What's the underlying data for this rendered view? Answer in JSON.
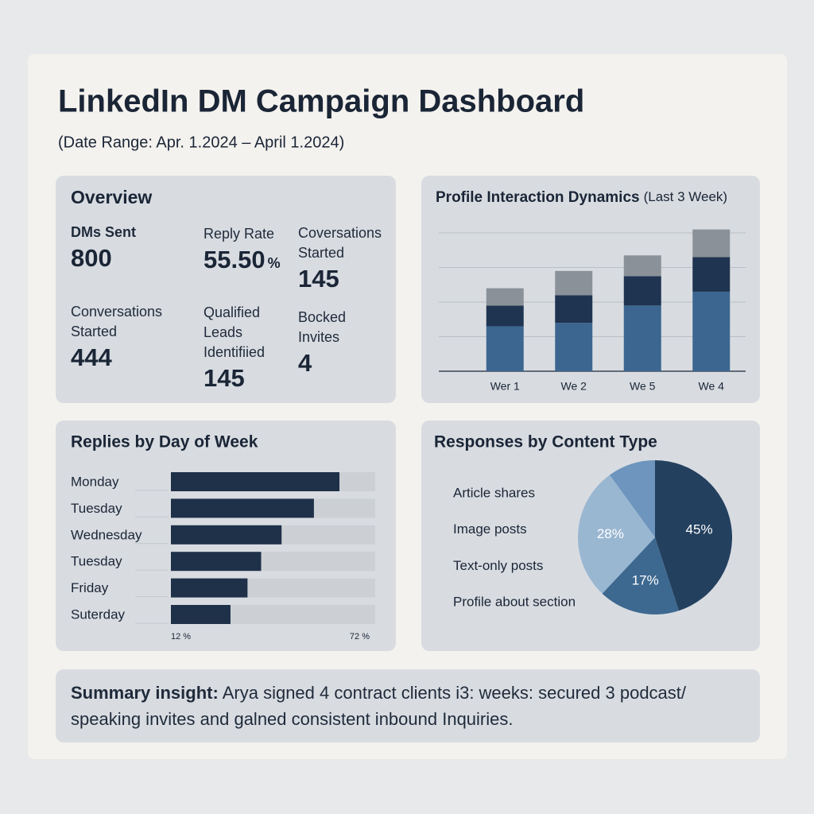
{
  "header": {
    "title": "LinkedIn DM Campaign Dashboard",
    "subtitle": "(Date Range: Apr. 1.2024 – April 1.2024)"
  },
  "overview": {
    "title": "Overview",
    "metrics": [
      {
        "label": "DMs Sent",
        "value": "800"
      },
      {
        "label": "Reply Rate",
        "value": "55.50",
        "unit": "%"
      },
      {
        "label": "Coversations Started",
        "value": "145"
      },
      {
        "label": "Conversations Started",
        "value": "444"
      },
      {
        "label": "Qualified Leads Identifiied",
        "value": "145"
      },
      {
        "label": "Bocked Invites",
        "value": "4"
      }
    ]
  },
  "chart_data": [
    {
      "type": "stacked-bar",
      "title": "Profile Interaction Dynamics",
      "subtitle": "(Last 3 Week)",
      "categories": [
        "Wer 1",
        "We 2",
        "We 5",
        "We 4"
      ],
      "series": [
        {
          "color": "#3c6690",
          "values": [
            13,
            14,
            19,
            23
          ]
        },
        {
          "color": "#1f3450",
          "values": [
            6,
            8,
            8.5,
            10
          ]
        },
        {
          "color": "#8a9199",
          "values": [
            5,
            7,
            6,
            8
          ]
        }
      ],
      "ylim": [
        0,
        42
      ],
      "yticks": [
        10,
        20,
        30,
        40
      ],
      "grid": true
    },
    {
      "type": "hbar",
      "title": "Replies by Day of Week",
      "categories": [
        "Monday",
        "Tuesday",
        "Wednesday",
        "Tuesday",
        "Friday",
        "Suterday"
      ],
      "values": [
        61.5,
        54,
        44.5,
        38.5,
        34.5,
        29.5
      ],
      "color": "#1f3049",
      "track_color": "#ccd0d5",
      "xlim": [
        12,
        72
      ],
      "xticks": [
        {
          "value": 12,
          "label": "12 %"
        },
        {
          "value": 72,
          "label": "72 %"
        }
      ]
    },
    {
      "type": "pie",
      "title": "Responses by Content Type",
      "categories": [
        "Article shares",
        "Image posts",
        "Text-only posts",
        "Profile about section"
      ],
      "values": [
        45,
        17,
        28,
        10
      ],
      "value_labels": [
        "45%",
        "17%",
        "28%",
        null
      ],
      "colors": [
        "#24405f",
        "#3d6890",
        "#9ab7d2",
        "#6d95bd"
      ]
    }
  ],
  "summary": {
    "label": "Summary insight:",
    "text": "Arya signed 4 contract clients i3: weeks: secured 3 podcast/ speaking invites and galned consistent inbound Inquiries."
  }
}
